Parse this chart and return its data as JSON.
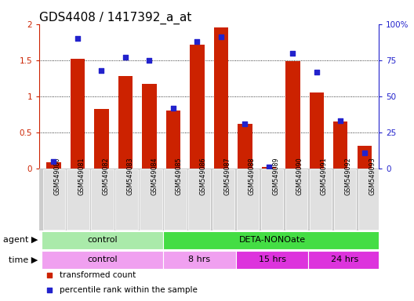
{
  "title": "GDS4408 / 1417392_a_at",
  "samples": [
    "GSM549080",
    "GSM549081",
    "GSM549082",
    "GSM549083",
    "GSM549084",
    "GSM549085",
    "GSM549086",
    "GSM549087",
    "GSM549088",
    "GSM549089",
    "GSM549090",
    "GSM549091",
    "GSM549092",
    "GSM549093"
  ],
  "red_values": [
    0.09,
    1.52,
    0.82,
    1.28,
    1.17,
    0.8,
    1.72,
    1.95,
    0.62,
    0.02,
    1.49,
    1.05,
    0.65,
    0.32
  ],
  "blue_percent": [
    5,
    90,
    68,
    77,
    75,
    42,
    88,
    91,
    31,
    1,
    80,
    67,
    33,
    11
  ],
  "ylim_left": [
    0,
    2
  ],
  "ylim_right": [
    0,
    100
  ],
  "yticks_left": [
    0,
    0.5,
    1.0,
    1.5,
    2.0
  ],
  "yticks_right": [
    0,
    25,
    50,
    75,
    100
  ],
  "ytick_labels_left": [
    "0",
    "0.5",
    "1",
    "1.5",
    "2"
  ],
  "ytick_labels_right": [
    "0",
    "25",
    "50",
    "75",
    "100%"
  ],
  "bar_color": "#cc2200",
  "dot_color": "#2222cc",
  "agent_groups": [
    {
      "label": "control",
      "start": 0,
      "end": 5,
      "color": "#aaeaaa"
    },
    {
      "label": "DETA-NONOate",
      "start": 5,
      "end": 14,
      "color": "#44dd44"
    }
  ],
  "time_groups": [
    {
      "label": "control",
      "start": 0,
      "end": 5,
      "color": "#f0a0f0"
    },
    {
      "label": "8 hrs",
      "start": 5,
      "end": 8,
      "color": "#f0a0f0"
    },
    {
      "label": "15 hrs",
      "start": 8,
      "end": 11,
      "color": "#dd33dd"
    },
    {
      "label": "24 hrs",
      "start": 11,
      "end": 14,
      "color": "#dd33dd"
    }
  ],
  "legend_items": [
    {
      "label": "transformed count",
      "color": "#cc2200"
    },
    {
      "label": "percentile rank within the sample",
      "color": "#2222cc"
    }
  ],
  "bg_color": "#ffffff",
  "title_fontsize": 11,
  "tick_fontsize": 7.5,
  "row_label_fontsize": 8,
  "annotation_fontsize": 8
}
